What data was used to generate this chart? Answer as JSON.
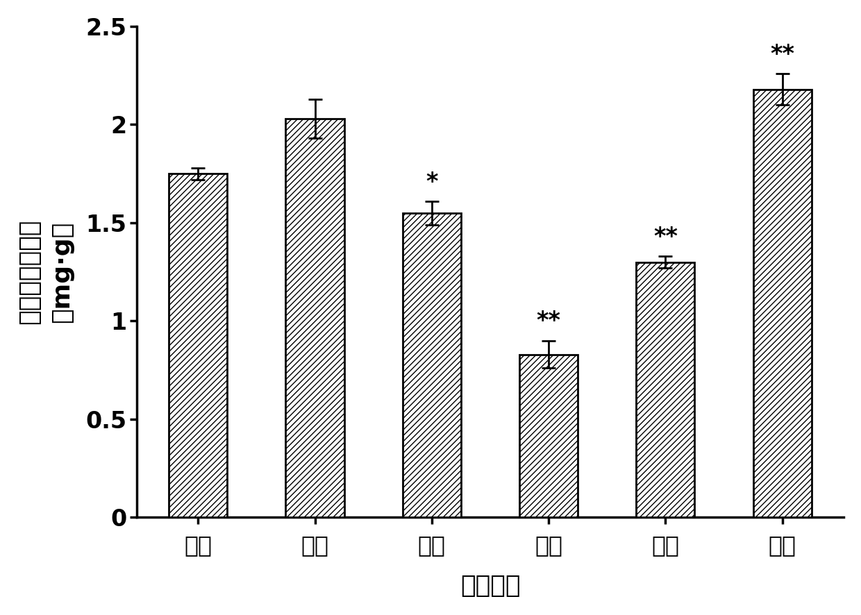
{
  "categories": [
    "白光",
    "红光",
    "黄光",
    "蓝光",
    "绿光",
    "紫光"
  ],
  "values": [
    1.75,
    2.03,
    1.55,
    0.83,
    1.3,
    2.18
  ],
  "errors": [
    0.03,
    0.1,
    0.06,
    0.07,
    0.03,
    0.08
  ],
  "significance": [
    "",
    "",
    "*",
    "**",
    "**",
    "**"
  ],
  "bar_color": "#000000",
  "bar_facecolor": "#ffffff",
  "hatch": "////",
  "xlabel": "不同光质",
  "ylabel_line1": "盐藻黄素含量／",
  "ylabel_line2": "（mg·g）",
  "ylim": [
    0,
    2.5
  ],
  "yticks": [
    0,
    0.5,
    1.0,
    1.5,
    2.0,
    2.5
  ],
  "label_fontsize": 26,
  "tick_fontsize": 24,
  "sig_fontsize": 24,
  "bar_width": 0.5,
  "figsize": [
    12.4,
    8.86
  ],
  "dpi": 100
}
